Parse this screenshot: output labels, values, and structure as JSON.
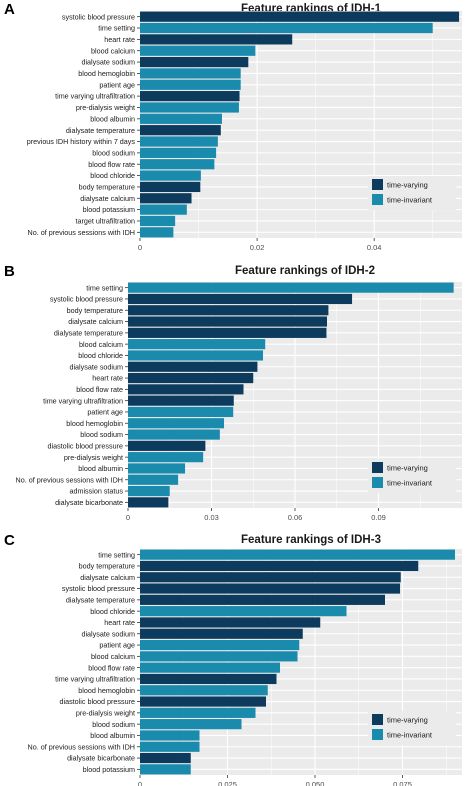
{
  "colors": {
    "time_varying": "#0d3b5e",
    "time_invariant": "#1a8aad",
    "panel_bg": "#ebebeb",
    "grid": "#ffffff",
    "text": "#1a1a1a",
    "tick_text": "#4d4d4d"
  },
  "chart_data": [
    {
      "panel_label": "A",
      "type": "bar",
      "orientation": "horizontal",
      "title": "Feature rankings of IDH-1",
      "xlim": [
        0,
        0.055
      ],
      "xticks": [
        0,
        0.02,
        0.04
      ],
      "xtick_labels": [
        "0",
        "0.02",
        "0.04"
      ],
      "grid": true,
      "legend_position": "bottom-right",
      "legend": [
        "time-varying",
        "time-invariant"
      ],
      "categories": [
        "systolic blood pressure",
        "time setting",
        "heart rate",
        "blood calcium",
        "dialysate sodium",
        "blood hemoglobin",
        "patient age",
        "time varying ultrafiltration",
        "pre-dialysis weight",
        "blood albumin",
        "dialysate temperature",
        "previous IDH history within 7 days",
        "blood sodium",
        "blood flow rate",
        "blood chloride",
        "body temperature",
        "dialysate calcium",
        "blood potassium",
        "target ultrafiltration",
        "No. of previous sessions with IDH"
      ],
      "values": [
        0.0545,
        0.05,
        0.026,
        0.0197,
        0.0185,
        0.0172,
        0.0172,
        0.017,
        0.0169,
        0.014,
        0.0138,
        0.0133,
        0.013,
        0.0127,
        0.0104,
        0.0103,
        0.0088,
        0.008,
        0.006,
        0.0057
      ],
      "groups": [
        "time-varying",
        "time-invariant",
        "time-varying",
        "time-invariant",
        "time-varying",
        "time-invariant",
        "time-invariant",
        "time-varying",
        "time-invariant",
        "time-invariant",
        "time-varying",
        "time-invariant",
        "time-invariant",
        "time-invariant",
        "time-invariant",
        "time-varying",
        "time-varying",
        "time-invariant",
        "time-invariant",
        "time-invariant"
      ]
    },
    {
      "panel_label": "B",
      "type": "bar",
      "orientation": "horizontal",
      "title": "Feature rankings of IDH-2",
      "xlim": [
        0,
        0.12
      ],
      "xticks": [
        0,
        0.03,
        0.06,
        0.09
      ],
      "xtick_labels": [
        "0",
        "0.03",
        "0.06",
        "0.09"
      ],
      "grid": true,
      "legend_position": "bottom-right",
      "legend": [
        "time-varying",
        "time-invariant"
      ],
      "categories": [
        "time setting",
        "systolic blood pressure",
        "body temperature",
        "dialysate calcium",
        "dialysate temperature",
        "blood calcium",
        "blood chloride",
        "dialysate sodium",
        "heart rate",
        "blood flow rate",
        "time varying ultrafiltration",
        "patient age",
        "blood hemoglobin",
        "blood sodium",
        "diastolic blood pressure",
        "pre-dialysis weight",
        "blood albumin",
        "No. of previous sessions with IDH",
        "admission status",
        "dialysate bicarbonate"
      ],
      "values": [
        0.117,
        0.0805,
        0.072,
        0.0715,
        0.0713,
        0.0493,
        0.0485,
        0.0465,
        0.045,
        0.0415,
        0.038,
        0.0378,
        0.0345,
        0.033,
        0.0278,
        0.027,
        0.0205,
        0.018,
        0.015,
        0.0145
      ],
      "groups": [
        "time-invariant",
        "time-varying",
        "time-varying",
        "time-varying",
        "time-varying",
        "time-invariant",
        "time-invariant",
        "time-varying",
        "time-varying",
        "time-varying",
        "time-varying",
        "time-invariant",
        "time-invariant",
        "time-invariant",
        "time-varying",
        "time-invariant",
        "time-invariant",
        "time-invariant",
        "time-invariant",
        "time-varying"
      ]
    },
    {
      "panel_label": "C",
      "type": "bar",
      "orientation": "horizontal",
      "title": "Feature rankings of IDH-3",
      "xlim": [
        0,
        0.092
      ],
      "xticks": [
        0,
        0.025,
        0.05,
        0.075
      ],
      "xtick_labels": [
        "0",
        "0.025",
        "0.050",
        "0.075"
      ],
      "grid": true,
      "legend_position": "bottom-right",
      "legend": [
        "time-varying",
        "time-invariant"
      ],
      "categories": [
        "time setting",
        "body temperature",
        "dialysate calcium",
        "systolic blood pressure",
        "dialysate temperature",
        "blood chloride",
        "heart rate",
        "dialysate sodium",
        "patient age",
        "blood calcium",
        "blood flow rate",
        "time varying ultrafiltration",
        "blood hemoglobin",
        "diastolic blood pressure",
        "pre-dialysis weight",
        "blood sodium",
        "blood albumin",
        "No. of previous sessions with IDH",
        "dialysate bicarbonate",
        "blood potassium"
      ],
      "values": [
        0.09,
        0.0795,
        0.0745,
        0.0743,
        0.07,
        0.059,
        0.0515,
        0.0465,
        0.0455,
        0.045,
        0.04,
        0.039,
        0.0365,
        0.036,
        0.033,
        0.029,
        0.017,
        0.017,
        0.0145,
        0.0145
      ],
      "groups": [
        "time-invariant",
        "time-varying",
        "time-varying",
        "time-varying",
        "time-varying",
        "time-invariant",
        "time-varying",
        "time-varying",
        "time-invariant",
        "time-invariant",
        "time-invariant",
        "time-varying",
        "time-invariant",
        "time-varying",
        "time-invariant",
        "time-invariant",
        "time-invariant",
        "time-invariant",
        "time-varying",
        "time-invariant"
      ]
    }
  ]
}
